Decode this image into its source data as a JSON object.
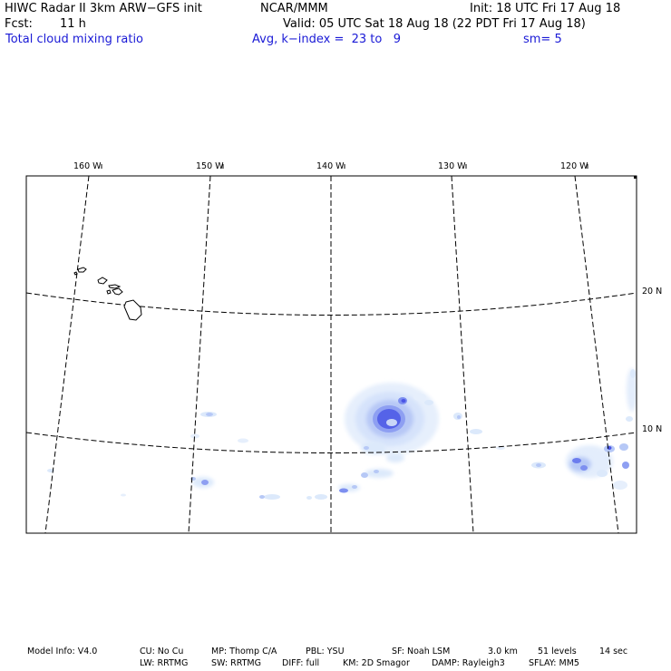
{
  "header": {
    "model_title": "HIWC Radar II 3km ARW−GFS init",
    "org": "NCAR/MMM",
    "init": "Init: 18 UTC Fri 17 Aug 18",
    "fcst_label": "Fcst:",
    "fcst_value": "11 h",
    "valid": "Valid: 05 UTC Sat 18 Aug 18 (22 PDT Fri 17 Aug 18)",
    "field": "Total cloud mixing ratio",
    "avg": "Avg, k−index =  23 to   9",
    "smooth": "sm= 5"
  },
  "map": {
    "longitude_labels": [
      "160 W",
      "150 W",
      "140 W",
      "130 W",
      "120 W"
    ],
    "latitude_labels": [
      "20 N",
      "10 N"
    ],
    "features": [
      "Hawaiian Islands",
      "Tropical cyclone cloud system"
    ],
    "colors": {
      "light": "#dce9fb",
      "medium": "#b6c8f6",
      "strong": "#7d8ff0",
      "core": "#4a55e6",
      "grid": "#000000"
    }
  },
  "footer": {
    "row1": [
      "Model Info: V4.0",
      "CU: No Cu",
      "MP: Thomp C/A",
      "PBL: YSU",
      "SF: Noah LSM",
      "3.0 km",
      "51 levels",
      "14 sec"
    ],
    "row2": [
      "LW: RRTMG",
      "SW: RRTMG",
      "DIFF: full",
      "KM: 2D Smagor",
      "DAMP: Rayleigh3",
      "SFLAY: MM5"
    ]
  }
}
